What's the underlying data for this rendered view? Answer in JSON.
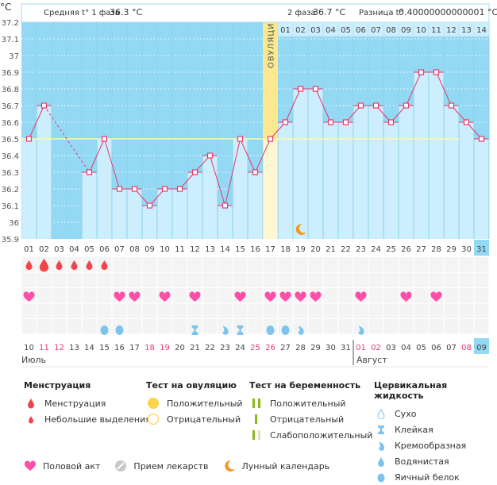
{
  "header": {
    "unit": "°C",
    "phase1_label": "Средняя t° 1 фаза",
    "phase1_value": "36.3 °C",
    "phase2_label": "2 фаза",
    "phase2_value": "36.7 °C",
    "diff_label": "Разница t°",
    "diff_value": "0.40000000000001 °C",
    "ovulation_label": "ОВУЛЯЦИЯ",
    "ovulation_test_icon": "yellow-circle-positive"
  },
  "chart_data": {
    "type": "bar",
    "title": "",
    "ylabel": "°C",
    "ylim": [
      35.9,
      37.2
    ],
    "yticks": [
      "37.2",
      "37.1",
      "37",
      "36.9",
      "36.8",
      "36.7",
      "36.6",
      "36.5",
      "36.4",
      "36.3",
      "36.2",
      "36.1",
      "36",
      "35.9"
    ],
    "cycle_days": [
      "01",
      "02",
      "03",
      "04",
      "05",
      "06",
      "07",
      "08",
      "09",
      "10",
      "11",
      "12",
      "13",
      "14",
      "15",
      "16",
      "17",
      "18",
      "19",
      "20",
      "21",
      "22",
      "23",
      "24",
      "25",
      "26",
      "27",
      "28",
      "29",
      "30",
      "31"
    ],
    "values": [
      36.5,
      36.7,
      null,
      null,
      36.3,
      36.5,
      36.2,
      36.2,
      36.1,
      36.2,
      36.2,
      36.3,
      36.4,
      36.1,
      36.5,
      36.3,
      36.5,
      36.6,
      36.8,
      36.8,
      36.6,
      36.6,
      36.7,
      36.7,
      36.6,
      36.7,
      36.9,
      36.9,
      36.7,
      36.6,
      36.5
    ],
    "coverline": 36.5,
    "ovulation_day": 17,
    "phase2_days": [
      "01",
      "02",
      "03",
      "04",
      "05",
      "06",
      "07",
      "08",
      "09",
      "10",
      "11",
      "12",
      "13",
      "14"
    ],
    "current_cycle_day": "31",
    "moon_day": 19,
    "grid": true
  },
  "calendar": {
    "dates": [
      {
        "d": "10",
        "weekend": false
      },
      {
        "d": "11",
        "weekend": true
      },
      {
        "d": "12",
        "weekend": true
      },
      {
        "d": "13",
        "weekend": false
      },
      {
        "d": "14",
        "weekend": false
      },
      {
        "d": "15",
        "weekend": false
      },
      {
        "d": "16",
        "weekend": false
      },
      {
        "d": "17",
        "weekend": false
      },
      {
        "d": "18",
        "weekend": true
      },
      {
        "d": "19",
        "weekend": true
      },
      {
        "d": "20",
        "weekend": false
      },
      {
        "d": "21",
        "weekend": false
      },
      {
        "d": "22",
        "weekend": false
      },
      {
        "d": "23",
        "weekend": false
      },
      {
        "d": "24",
        "weekend": false
      },
      {
        "d": "25",
        "weekend": true
      },
      {
        "d": "26",
        "weekend": true
      },
      {
        "d": "27",
        "weekend": false
      },
      {
        "d": "28",
        "weekend": false
      },
      {
        "d": "29",
        "weekend": false
      },
      {
        "d": "30",
        "weekend": false
      },
      {
        "d": "31",
        "weekend": false
      },
      {
        "d": "01",
        "weekend": true
      },
      {
        "d": "02",
        "weekend": true
      },
      {
        "d": "03",
        "weekend": false
      },
      {
        "d": "04",
        "weekend": false
      },
      {
        "d": "05",
        "weekend": false
      },
      {
        "d": "06",
        "weekend": false
      },
      {
        "d": "07",
        "weekend": false
      },
      {
        "d": "08",
        "weekend": true
      },
      {
        "d": "09",
        "weekend": false,
        "today": true
      }
    ],
    "month1": "Июль",
    "month2": "Август",
    "month2_start_index": 22,
    "menstruation": [
      1,
      2,
      1,
      1,
      1,
      1,
      0,
      0,
      0,
      0,
      0,
      0,
      0,
      0,
      0,
      0,
      0,
      0,
      0,
      0,
      0,
      0,
      0,
      0,
      0,
      0,
      0,
      0,
      0,
      0,
      0
    ],
    "intercourse": [
      1,
      0,
      0,
      0,
      0,
      0,
      1,
      1,
      0,
      1,
      0,
      1,
      0,
      0,
      1,
      0,
      1,
      1,
      1,
      1,
      0,
      0,
      1,
      0,
      0,
      1,
      0,
      1,
      0,
      0,
      0
    ],
    "fluid": [
      "",
      "",
      "",
      "",
      "",
      "egg",
      "egg",
      "",
      "",
      "",
      "",
      "sticky",
      "",
      "creamy",
      "sticky",
      "",
      "egg",
      "egg",
      "creamy",
      "",
      "",
      "",
      "creamy",
      "",
      "",
      "",
      "",
      "",
      "",
      "",
      ""
    ]
  },
  "colors": {
    "chart_bg": "#93d9f3",
    "bar": "#cdeefc",
    "line": "#e8386d",
    "coverline": "#fff7a8",
    "ovulation": "#fbe88f",
    "weekend": "#e8386d",
    "heart": "#ff4fa8",
    "drop": "#f2454b",
    "fluid": "#7cc4ee"
  },
  "legend": {
    "menstruation": {
      "title": "Менструация",
      "items": [
        "Менструация",
        "Небольшие выделения"
      ]
    },
    "ovulation_test": {
      "title": "Тест на овуляцию",
      "items": [
        "Положительный",
        "Отрицательный"
      ]
    },
    "pregnancy_test": {
      "title": "Тест на беременность",
      "items": [
        "Положительный",
        "Отрицательный",
        "Слабоположительный"
      ]
    },
    "cervical_fluid": {
      "title": "Цервикальная жидкость",
      "items": [
        "Сухо",
        "Клейкая",
        "Кремообразная",
        "Водянистая",
        "Яичный белок"
      ]
    },
    "bottom": [
      "Половой акт",
      "Прием лекарств",
      "Лунный календарь"
    ]
  }
}
